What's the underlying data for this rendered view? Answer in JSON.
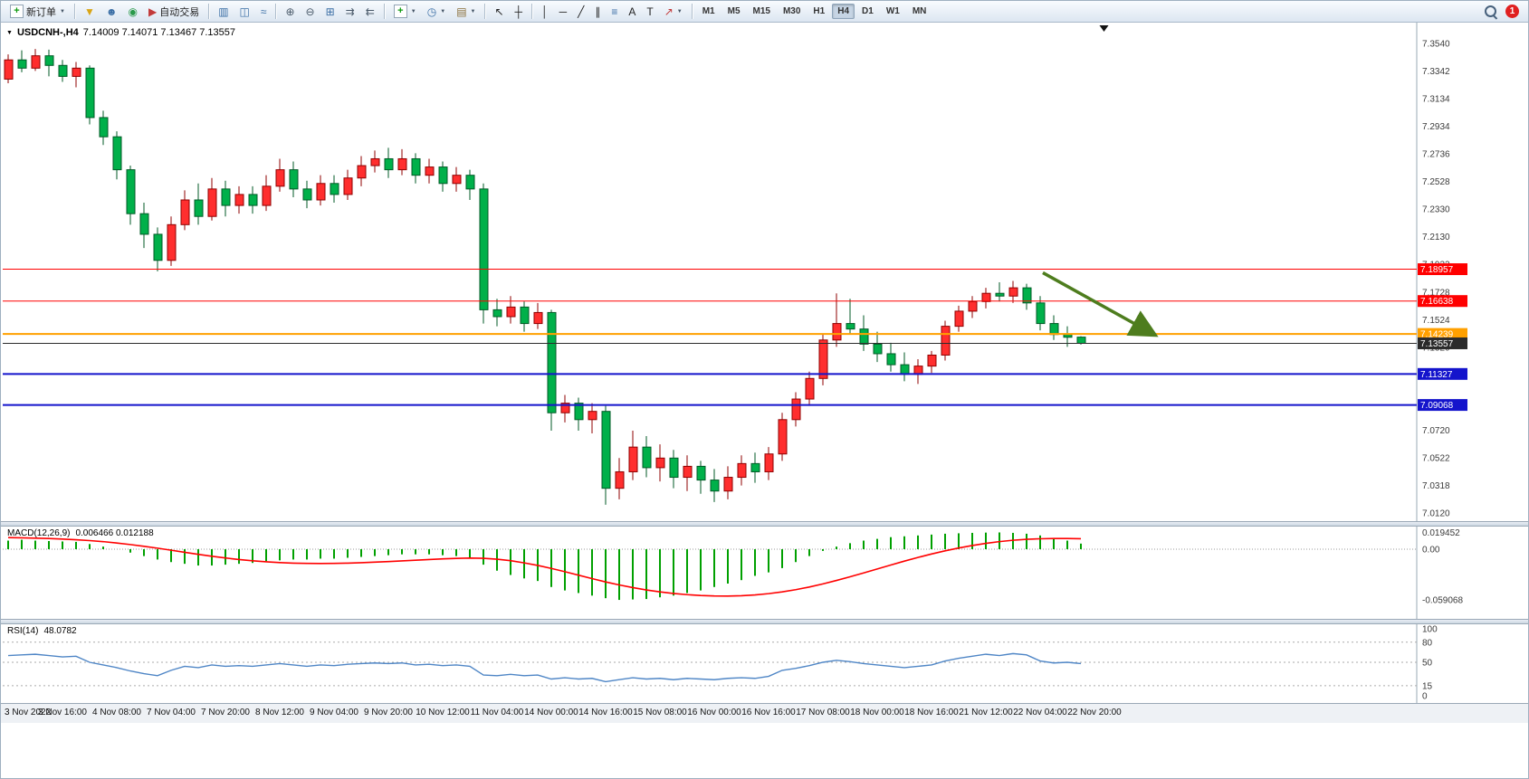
{
  "toolbar": {
    "notification_count": "1",
    "timeframes": [
      "M1",
      "M5",
      "M15",
      "M30",
      "H1",
      "H4",
      "D1",
      "W1",
      "MN"
    ],
    "active_timeframe": "H4",
    "items": [
      {
        "name": "new-order-button",
        "glyph": "+",
        "glyph_color": "#0f9b0f",
        "boxed": true,
        "label": "新订单",
        "caret": true
      },
      {
        "sep": true
      },
      {
        "name": "filter-icon",
        "glyph": "▼",
        "glyph_color": "#d9a515"
      },
      {
        "name": "profile-icon",
        "glyph": "☻",
        "glyph_color": "#3a6ea5"
      },
      {
        "name": "community-icon",
        "glyph": "◉",
        "glyph_color": "#2a9a4a"
      },
      {
        "name": "autotrade-button",
        "glyph": "▶",
        "glyph_color": "#c23a3a",
        "label": "自动交易"
      },
      {
        "sep": true
      },
      {
        "name": "bar-chart-icon",
        "glyph": "▥",
        "glyph_color": "#3a6ea5"
      },
      {
        "name": "candlestick-chart-icon",
        "glyph": "◫",
        "glyph_color": "#3a6ea5"
      },
      {
        "name": "line-chart-icon",
        "glyph": "≈",
        "glyph_color": "#3a6ea5"
      },
      {
        "sep": true
      },
      {
        "name": "zoom-in-icon",
        "glyph": "⊕",
        "glyph_color": "#4a5a6a"
      },
      {
        "name": "zoom-out-icon",
        "glyph": "⊖",
        "glyph_color": "#4a5a6a"
      },
      {
        "name": "tile-windows-icon",
        "glyph": "⊞",
        "glyph_color": "#3a6ea5"
      },
      {
        "name": "auto-scroll-icon",
        "glyph": "⇉",
        "glyph_color": "#4a5a6a"
      },
      {
        "name": "chart-shift-icon",
        "glyph": "⇇",
        "glyph_color": "#4a5a6a"
      },
      {
        "sep": true
      },
      {
        "name": "indicators-icon",
        "glyph": "+",
        "glyph_color": "#0f9b0f",
        "boxed": true,
        "caret": true
      },
      {
        "name": "periods-icon",
        "glyph": "◷",
        "glyph_color": "#3a6ea5",
        "caret": true
      },
      {
        "name": "template-icon",
        "glyph": "▤",
        "glyph_color": "#8a6f3a",
        "caret": true
      },
      {
        "sep": true
      },
      {
        "name": "cursor-icon",
        "glyph": "↖",
        "glyph_color": "#222222"
      },
      {
        "name": "crosshair-icon",
        "glyph": "┼",
        "glyph_color": "#222222"
      },
      {
        "sep": true
      },
      {
        "name": "vertical-line-icon",
        "glyph": "│",
        "glyph_color": "#222222"
      },
      {
        "name": "horizontal-line-icon",
        "glyph": "─",
        "glyph_color": "#222222"
      },
      {
        "name": "trendline-icon",
        "glyph": "╱",
        "glyph_color": "#222222"
      },
      {
        "name": "channel-icon",
        "glyph": "∥",
        "glyph_color": "#222222"
      },
      {
        "name": "fibonacci-icon",
        "glyph": "≡",
        "glyph_color": "#3a6ea5"
      },
      {
        "name": "text-icon",
        "glyph": "A",
        "glyph_color": "#222222"
      },
      {
        "name": "label-icon",
        "glyph": "T",
        "glyph_color": "#222222"
      },
      {
        "name": "arrows-icon",
        "glyph": "↗",
        "glyph_color": "#c23a3a",
        "caret": true
      },
      {
        "sep": true
      }
    ]
  },
  "chart": {
    "title_symbol": "USDCNH-,H4",
    "title_ohlc": "7.14009 7.14071 7.13467 7.13557",
    "price_ticks": [
      "7.3540",
      "7.3342",
      "7.3134",
      "7.2934",
      "7.2736",
      "7.2528",
      "7.2330",
      "7.2130",
      "7.1932",
      "7.1728",
      "7.1524",
      "7.1320",
      "7.1122",
      "7.0916",
      "7.0720",
      "7.0522",
      "7.0318",
      "7.0120"
    ],
    "hlines": [
      {
        "price": 7.18957,
        "label": "7.18957",
        "color": "#ff0000",
        "width": 1
      },
      {
        "price": 7.16638,
        "label": "7.16638",
        "color": "#ff0000",
        "width": 1
      },
      {
        "price": 7.14239,
        "label": "7.14239",
        "color": "#ffa000",
        "width": 2
      },
      {
        "price": 7.13557,
        "label": "7.13557",
        "color": "#2b2b2b",
        "width": 1
      },
      {
        "price": 7.11327,
        "label": "7.11327",
        "color": "#1414cc",
        "width": 2
      },
      {
        "price": 7.09068,
        "label": "7.09068",
        "color": "#1414cc",
        "width": 2
      }
    ],
    "arrow": {
      "from_bar": 76.2,
      "from_price": 7.187,
      "to_bar": 84.3,
      "to_price": 7.1425,
      "color": "#4e7d1e"
    },
    "shift_marker_bar": 80.7
  },
  "chart_data": {
    "type": "candlestick",
    "symbol": "USDCNH-",
    "timeframe": "H4",
    "price_range": [
      7.012,
      7.354
    ],
    "up_color": "#ff2e2e",
    "down_color": "#00b04a",
    "bars_per_label": 4,
    "x_labels": [
      "3 Nov 2022",
      "3 Nov 16:00",
      "4 Nov 08:00",
      "7 Nov 04:00",
      "7 Nov 20:00",
      "8 Nov 12:00",
      "9 Nov 04:00",
      "9 Nov 20:00",
      "10 Nov 12:00",
      "11 Nov 04:00",
      "14 Nov 00:00",
      "14 Nov 16:00",
      "15 Nov 08:00",
      "16 Nov 00:00",
      "16 Nov 16:00",
      "17 Nov 08:00",
      "18 Nov 00:00",
      "18 Nov 16:00",
      "21 Nov 12:00",
      "22 Nov 04:00",
      "22 Nov 20:00"
    ],
    "candles": [
      [
        7.328,
        7.346,
        7.325,
        7.342
      ],
      [
        7.342,
        7.349,
        7.333,
        7.336
      ],
      [
        7.336,
        7.35,
        7.334,
        7.345
      ],
      [
        7.345,
        7.3495,
        7.33,
        7.338
      ],
      [
        7.338,
        7.342,
        7.326,
        7.33
      ],
      [
        7.33,
        7.3405,
        7.322,
        7.336
      ],
      [
        7.336,
        7.338,
        7.295,
        7.3
      ],
      [
        7.3,
        7.305,
        7.28,
        7.286
      ],
      [
        7.286,
        7.29,
        7.255,
        7.262
      ],
      [
        7.262,
        7.265,
        7.222,
        7.23
      ],
      [
        7.23,
        7.238,
        7.205,
        7.215
      ],
      [
        7.215,
        7.22,
        7.188,
        7.196
      ],
      [
        7.196,
        7.228,
        7.192,
        7.222
      ],
      [
        7.222,
        7.247,
        7.218,
        7.24
      ],
      [
        7.24,
        7.252,
        7.222,
        7.228
      ],
      [
        7.228,
        7.256,
        7.225,
        7.248
      ],
      [
        7.248,
        7.254,
        7.228,
        7.236
      ],
      [
        7.236,
        7.25,
        7.23,
        7.244
      ],
      [
        7.244,
        7.25,
        7.23,
        7.236
      ],
      [
        7.236,
        7.258,
        7.232,
        7.25
      ],
      [
        7.25,
        7.27,
        7.246,
        7.262
      ],
      [
        7.262,
        7.268,
        7.242,
        7.248
      ],
      [
        7.248,
        7.254,
        7.234,
        7.24
      ],
      [
        7.24,
        7.258,
        7.236,
        7.252
      ],
      [
        7.252,
        7.258,
        7.238,
        7.244
      ],
      [
        7.244,
        7.262,
        7.24,
        7.256
      ],
      [
        7.256,
        7.272,
        7.25,
        7.265
      ],
      [
        7.265,
        7.276,
        7.26,
        7.27
      ],
      [
        7.27,
        7.278,
        7.256,
        7.262
      ],
      [
        7.262,
        7.277,
        7.258,
        7.27
      ],
      [
        7.27,
        7.274,
        7.252,
        7.258
      ],
      [
        7.258,
        7.27,
        7.252,
        7.264
      ],
      [
        7.264,
        7.268,
        7.246,
        7.252
      ],
      [
        7.252,
        7.264,
        7.246,
        7.258
      ],
      [
        7.258,
        7.262,
        7.24,
        7.248
      ],
      [
        7.248,
        7.252,
        7.15,
        7.16
      ],
      [
        7.16,
        7.168,
        7.148,
        7.155
      ],
      [
        7.155,
        7.17,
        7.15,
        7.162
      ],
      [
        7.162,
        7.166,
        7.144,
        7.15
      ],
      [
        7.15,
        7.165,
        7.146,
        7.158
      ],
      [
        7.158,
        7.16,
        7.072,
        7.085
      ],
      [
        7.085,
        7.098,
        7.078,
        7.092
      ],
      [
        7.092,
        7.096,
        7.072,
        7.08
      ],
      [
        7.08,
        7.092,
        7.07,
        7.086
      ],
      [
        7.086,
        7.09,
        7.018,
        7.03
      ],
      [
        7.03,
        7.052,
        7.022,
        7.042
      ],
      [
        7.042,
        7.072,
        7.036,
        7.06
      ],
      [
        7.06,
        7.068,
        7.038,
        7.045
      ],
      [
        7.045,
        7.062,
        7.035,
        7.052
      ],
      [
        7.052,
        7.058,
        7.03,
        7.038
      ],
      [
        7.038,
        7.054,
        7.028,
        7.046
      ],
      [
        7.046,
        7.05,
        7.026,
        7.036
      ],
      [
        7.036,
        7.044,
        7.02,
        7.028
      ],
      [
        7.028,
        7.046,
        7.022,
        7.038
      ],
      [
        7.038,
        7.054,
        7.032,
        7.048
      ],
      [
        7.048,
        7.056,
        7.034,
        7.042
      ],
      [
        7.042,
        7.06,
        7.036,
        7.055
      ],
      [
        7.055,
        7.085,
        7.05,
        7.08
      ],
      [
        7.08,
        7.1,
        7.075,
        7.095
      ],
      [
        7.095,
        7.115,
        7.09,
        7.11
      ],
      [
        7.11,
        7.142,
        7.105,
        7.138
      ],
      [
        7.138,
        7.172,
        7.133,
        7.15
      ],
      [
        7.15,
        7.168,
        7.142,
        7.146
      ],
      [
        7.146,
        7.156,
        7.13,
        7.135
      ],
      [
        7.135,
        7.144,
        7.122,
        7.128
      ],
      [
        7.128,
        7.136,
        7.115,
        7.12
      ],
      [
        7.12,
        7.129,
        7.108,
        7.113
      ],
      [
        7.113,
        7.124,
        7.106,
        7.119
      ],
      [
        7.119,
        7.13,
        7.114,
        7.127
      ],
      [
        7.127,
        7.152,
        7.123,
        7.148
      ],
      [
        7.148,
        7.163,
        7.144,
        7.159
      ],
      [
        7.159,
        7.17,
        7.154,
        7.166
      ],
      [
        7.166,
        7.176,
        7.161,
        7.172
      ],
      [
        7.172,
        7.18,
        7.166,
        7.17
      ],
      [
        7.17,
        7.181,
        7.165,
        7.176
      ],
      [
        7.176,
        7.179,
        7.16,
        7.165
      ],
      [
        7.165,
        7.17,
        7.145,
        7.15
      ],
      [
        7.15,
        7.156,
        7.138,
        7.142
      ],
      [
        7.142,
        7.148,
        7.133,
        7.14
      ],
      [
        7.14009,
        7.14071,
        7.13467,
        7.13557
      ]
    ],
    "indicators": {
      "macd": {
        "label": "MACD(12,26,9)",
        "values_text": "0.006466 0.012188",
        "axis_labels": [
          "0.019452",
          "0.00",
          "-0.059068"
        ],
        "axis_values": [
          0.019452,
          0,
          -0.059068
        ],
        "hist_color": "#00a000",
        "signal_color": "#ff0000",
        "histogram": [
          0.01,
          0.011,
          0.01,
          0.0095,
          0.009,
          0.0085,
          0.006,
          0.003,
          0.0,
          -0.004,
          -0.008,
          -0.012,
          -0.015,
          -0.017,
          -0.019,
          -0.019,
          -0.018,
          -0.017,
          -0.016,
          -0.014,
          -0.013,
          -0.012,
          -0.012,
          -0.011,
          -0.011,
          -0.01,
          -0.009,
          -0.008,
          -0.007,
          -0.006,
          -0.006,
          -0.006,
          -0.007,
          -0.008,
          -0.01,
          -0.018,
          -0.025,
          -0.03,
          -0.034,
          -0.037,
          -0.044,
          -0.048,
          -0.051,
          -0.054,
          -0.057,
          -0.059,
          -0.0585,
          -0.058,
          -0.056,
          -0.054,
          -0.051,
          -0.048,
          -0.044,
          -0.04,
          -0.036,
          -0.031,
          -0.027,
          -0.022,
          -0.015,
          -0.008,
          -0.002,
          0.003,
          0.007,
          0.01,
          0.012,
          0.014,
          0.015,
          0.016,
          0.017,
          0.018,
          0.0185,
          0.019,
          0.0193,
          0.0195,
          0.019,
          0.018,
          0.016,
          0.013,
          0.01,
          0.0065
        ],
        "signal": [
          0.0135,
          0.0132,
          0.0128,
          0.0124,
          0.0118,
          0.011,
          0.01,
          0.0088,
          0.0072,
          0.0054,
          0.0034,
          0.0012,
          -0.0012,
          -0.0036,
          -0.006,
          -0.0082,
          -0.0102,
          -0.012,
          -0.0135,
          -0.0147,
          -0.0156,
          -0.0162,
          -0.0165,
          -0.0166,
          -0.0165,
          -0.0162,
          -0.0157,
          -0.0151,
          -0.0144,
          -0.0136,
          -0.0128,
          -0.012,
          -0.0113,
          -0.0107,
          -0.0103,
          -0.0106,
          -0.0116,
          -0.0134,
          -0.0159,
          -0.0189,
          -0.0224,
          -0.0262,
          -0.0302,
          -0.0342,
          -0.0381,
          -0.0416,
          -0.0447,
          -0.0474,
          -0.0497,
          -0.0515,
          -0.0529,
          -0.0539,
          -0.0544,
          -0.0545,
          -0.0541,
          -0.0532,
          -0.0517,
          -0.0497,
          -0.0471,
          -0.044,
          -0.0404,
          -0.0364,
          -0.0321,
          -0.0276,
          -0.023,
          -0.0184,
          -0.0139,
          -0.0096,
          -0.0056,
          -0.0019,
          0.0014,
          0.0043,
          0.0068,
          0.0088,
          0.0104,
          0.0115,
          0.0121,
          0.0124,
          0.0124,
          0.0122
        ]
      },
      "rsi": {
        "label": "RSI(14)",
        "value_text": "48.0782",
        "color": "#4f86c6",
        "levels": [
          80,
          50,
          15
        ],
        "axis_labels": [
          "100",
          "80",
          "50",
          "15",
          "0"
        ],
        "axis_values": [
          100,
          80,
          50,
          15,
          0
        ],
        "values": [
          60,
          61,
          62,
          60,
          58,
          59,
          50,
          46,
          42,
          37,
          33,
          30,
          38,
          44,
          42,
          46,
          44,
          45,
          44,
          46,
          48,
          46,
          44,
          46,
          45,
          47,
          48,
          49,
          48,
          49,
          46,
          47,
          45,
          46,
          44,
          31,
          30,
          32,
          30,
          31,
          25,
          27,
          25,
          26,
          21,
          24,
          27,
          25,
          26,
          24,
          26,
          25,
          24,
          26,
          27,
          26,
          29,
          38,
          41,
          45,
          50,
          53,
          51,
          48,
          46,
          44,
          42,
          44,
          46,
          52,
          56,
          59,
          62,
          60,
          63,
          61,
          52,
          49,
          50,
          48
        ]
      }
    }
  }
}
